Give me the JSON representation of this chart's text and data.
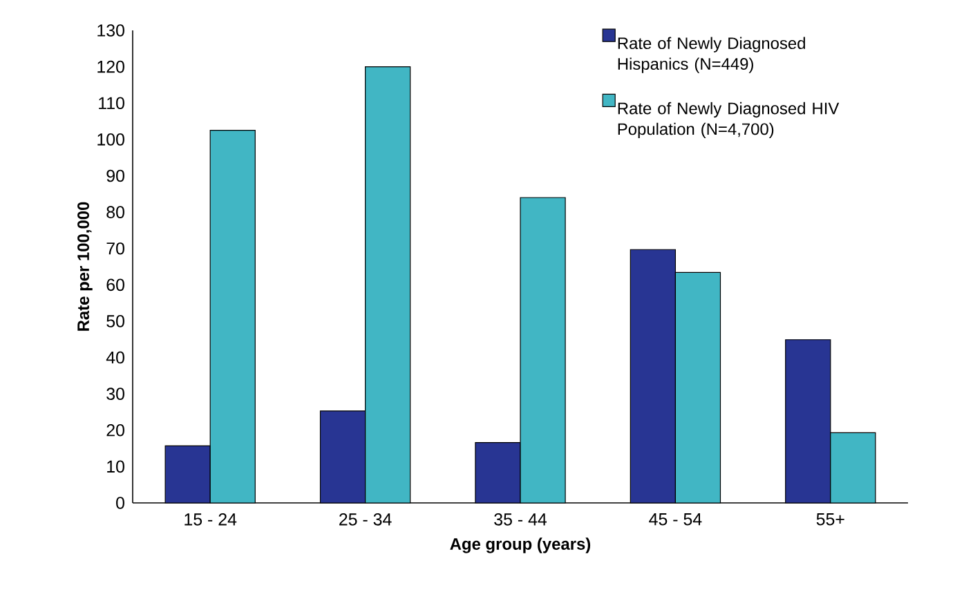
{
  "chart_data": {
    "type": "bar",
    "xlabel": "Age group (years)",
    "ylabel": "Rate per 100,000",
    "categories": [
      "15 - 24",
      "25 - 34",
      "35 - 44",
      "45 - 54",
      "55+"
    ],
    "series": [
      {
        "name": "Rate of Newly Diagnosed Hispanics (N=449)",
        "color": "#283593",
        "values": [
          15.7,
          25.3,
          16.6,
          69.7,
          44.9
        ]
      },
      {
        "name": "Rate of Newly Diagnosed HIV Population (N=4,700)",
        "color": "#41b6c4",
        "values": [
          102.5,
          120.0,
          84.0,
          63.4,
          19.3
        ]
      }
    ],
    "ylim": [
      0,
      130
    ],
    "yticks": [
      0,
      10,
      20,
      30,
      40,
      50,
      60,
      70,
      80,
      90,
      100,
      110,
      120,
      130
    ],
    "legend": "top right"
  }
}
